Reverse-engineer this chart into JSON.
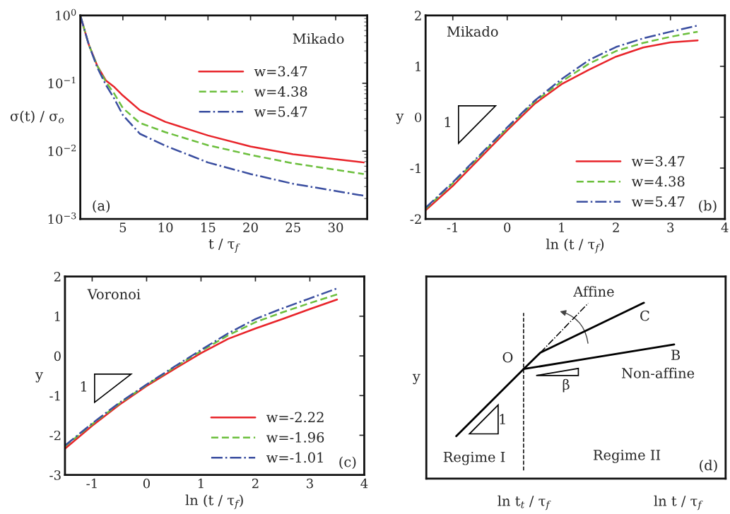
{
  "chart_data": [
    {
      "type": "line",
      "xlabel": "t / τ$_{f}$",
      "ylabel": "σ(t) / σ$_{o}$",
      "log": "y",
      "xlim": [
        0,
        33.7
      ],
      "xticks": [
        5,
        10,
        15,
        20,
        25,
        30
      ],
      "ylim": [
        0.001,
        1
      ],
      "yticks": [
        {
          "value": 0.001,
          "label": "10$^{−3}$"
        },
        {
          "value": 0.01,
          "label": "10$^{−2}$"
        },
        {
          "value": 0.1,
          "label": "10$^{−1}$"
        },
        {
          "value": 1,
          "label": "10$^{0}$"
        }
      ],
      "legend": "top right",
      "grid": false,
      "annotations": [
        "Mikado",
        "(a)"
      ],
      "x": [
        0,
        1,
        2,
        3,
        4,
        5,
        7,
        10,
        15,
        20,
        25,
        33.3
      ],
      "series": [
        {
          "name": "w=3.47",
          "color": "#e8242a",
          "line_style": "solid",
          "values": [
            1,
            0.37,
            0.18,
            0.11,
            0.088,
            0.066,
            0.04,
            0.027,
            0.017,
            0.0117,
            0.009,
            0.0068
          ]
        },
        {
          "name": "w=4.38",
          "color": "#6cbf3d",
          "line_style": "dashed",
          "values": [
            1,
            0.37,
            0.18,
            0.105,
            0.07,
            0.043,
            0.026,
            0.019,
            0.0122,
            0.0088,
            0.0066,
            0.0046
          ]
        },
        {
          "name": "w=5.47",
          "color": "#3a4ea0",
          "line_style": "dashdot",
          "values": [
            1,
            0.37,
            0.17,
            0.095,
            0.059,
            0.034,
            0.018,
            0.012,
            0.0068,
            0.0046,
            0.0033,
            0.0022
          ]
        }
      ]
    },
    {
      "type": "line",
      "xlabel": "ln (t / τ$_{f}$)",
      "ylabel": "y",
      "xlim": [
        -1.5,
        4
      ],
      "xticks": [
        -1,
        0,
        1,
        2,
        3,
        4
      ],
      "ylim": [
        -2,
        2
      ],
      "yticks": [
        -2,
        -1,
        0,
        1,
        2
      ],
      "legend": "bottom right",
      "grid": false,
      "annotations": [
        "Mikado",
        "1",
        "(b)"
      ],
      "x": [
        -1.5,
        -1,
        0,
        0.5,
        1,
        1.5,
        2,
        2.5,
        3,
        3.5
      ],
      "series": [
        {
          "name": "w=3.47",
          "color": "#e8242a",
          "line_style": "solid",
          "values": [
            -1.83,
            -1.35,
            -0.26,
            0.26,
            0.65,
            0.93,
            1.19,
            1.37,
            1.47,
            1.51
          ]
        },
        {
          "name": "w=4.38",
          "color": "#6cbf3d",
          "line_style": "dashed",
          "values": [
            -1.8,
            -1.3,
            -0.22,
            0.3,
            0.7,
            1.05,
            1.3,
            1.46,
            1.58,
            1.68
          ]
        },
        {
          "name": "w=5.47",
          "color": "#3a4ea0",
          "line_style": "dashdot",
          "values": [
            -1.78,
            -1.28,
            -0.2,
            0.32,
            0.75,
            1.12,
            1.38,
            1.55,
            1.68,
            1.8
          ]
        }
      ]
    },
    {
      "type": "line",
      "xlabel": "ln (t / τ$_{f}$)",
      "ylabel": "y",
      "xlim": [
        -1.5,
        4
      ],
      "xticks": [
        -1,
        0,
        1,
        2,
        3,
        4
      ],
      "ylim": [
        -3,
        2
      ],
      "yticks": [
        -3,
        -2,
        -1,
        0,
        1,
        2
      ],
      "legend": "bottom right",
      "grid": false,
      "annotations": [
        "Voronoi",
        "1",
        "(c)"
      ],
      "x": [
        -1.5,
        -1,
        -0.5,
        0,
        0.5,
        1,
        1.5,
        2,
        2.5,
        3,
        3.5
      ],
      "series": [
        {
          "name": "w=-2.22",
          "color": "#e8242a",
          "line_style": "solid",
          "values": [
            -2.34,
            -1.76,
            -1.23,
            -0.76,
            -0.34,
            0.07,
            0.43,
            0.69,
            0.93,
            1.18,
            1.42
          ]
        },
        {
          "name": "w=-1.96",
          "color": "#6cbf3d",
          "line_style": "dashed",
          "values": [
            -2.28,
            -1.72,
            -1.2,
            -0.73,
            -0.3,
            0.12,
            0.52,
            0.85,
            1.1,
            1.33,
            1.55
          ]
        },
        {
          "name": "w=-1.01",
          "color": "#3a4ea0",
          "line_style": "dashdot",
          "values": [
            -2.26,
            -1.7,
            -1.18,
            -0.72,
            -0.28,
            0.15,
            0.57,
            0.93,
            1.2,
            1.45,
            1.7
          ]
        }
      ]
    },
    {
      "type": "other",
      "ylabel": "y",
      "annotations": [
        "Affine",
        "C",
        "O",
        "B",
        "Non-affine",
        "β",
        "1",
        "Regime I",
        "Regime II",
        "(d)",
        "ln t$_{t}$ / τ$_{f}$",
        "ln t / τ$_{f}$"
      ]
    }
  ]
}
